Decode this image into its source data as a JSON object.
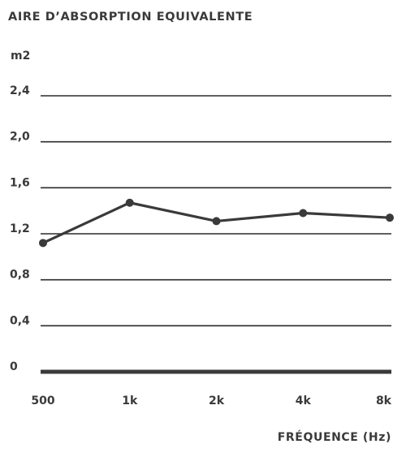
{
  "chart_data": {
    "type": "line",
    "title": "AIRE D’ABSORPTION EQUIVALENTE",
    "ylabel": "m2",
    "xlabel": "FRÉQUENCE (Hz)",
    "categories": [
      "500",
      "1k",
      "2k",
      "4k",
      "8k"
    ],
    "yticks": [
      "0",
      "0,4",
      "0,8",
      "1,2",
      "1,6",
      "2,0",
      "2,4"
    ],
    "ylim": [
      0,
      2.4
    ],
    "grid": true,
    "series": [
      {
        "values": [
          1.12,
          1.47,
          1.31,
          1.38,
          1.34
        ]
      }
    ],
    "colors": {
      "line": "#3a3a3a",
      "grid": "#2b2b2b",
      "text": "#3a3a3a"
    }
  }
}
